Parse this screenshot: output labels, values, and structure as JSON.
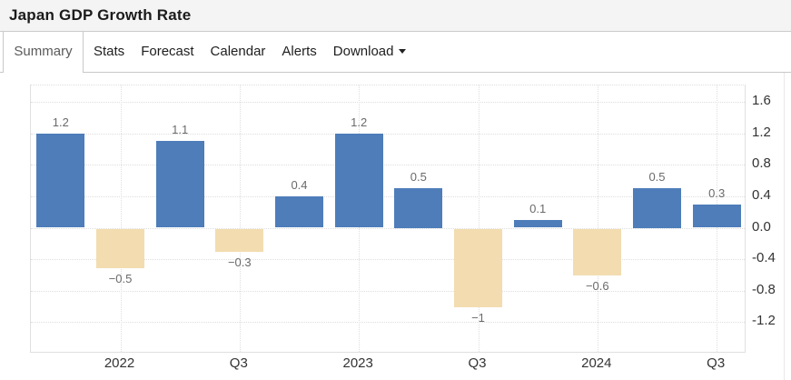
{
  "header": {
    "title": "Japan GDP Growth Rate"
  },
  "tabs": {
    "items": [
      {
        "label": "Summary",
        "active": true
      },
      {
        "label": "Stats",
        "active": false
      },
      {
        "label": "Forecast",
        "active": false
      },
      {
        "label": "Calendar",
        "active": false
      },
      {
        "label": "Alerts",
        "active": false
      },
      {
        "label": "Download",
        "active": false,
        "has_dropdown": true
      }
    ]
  },
  "chart_data": {
    "type": "bar",
    "title": "Japan GDP Growth Rate",
    "xlabel": "",
    "ylabel": "",
    "values": [
      1.2,
      -0.5,
      1.1,
      -0.3,
      0.4,
      1.2,
      0.5,
      -1,
      0.1,
      -0.6,
      0.5,
      0.3
    ],
    "bar_labels": [
      "1.2",
      "−0.5",
      "1.1",
      "−0.3",
      "0.4",
      "1.2",
      "0.5",
      "−1",
      "0.1",
      "−0.6",
      "0.5",
      "0.3"
    ],
    "x_tick_labels": [
      "2022",
      "Q3",
      "2023",
      "Q3",
      "2024",
      "Q3"
    ],
    "x_tick_slots": [
      1,
      3,
      5,
      7,
      9,
      11
    ],
    "y_ticks": [
      1.6,
      1.2,
      0.8,
      0.4,
      0,
      -0.4,
      -0.8,
      -1.2
    ],
    "y_tick_labels": [
      "1.6",
      "1.2",
      "0.8",
      "0.4",
      "0.0",
      "-0.4",
      "-0.8",
      "-1.2"
    ],
    "ylim": [
      -1.6,
      1.8
    ],
    "grid": "dotted",
    "legend": "none",
    "colors": {
      "positive_bar": "#4e7dba",
      "negative_bar": "#f2dcb0"
    }
  }
}
